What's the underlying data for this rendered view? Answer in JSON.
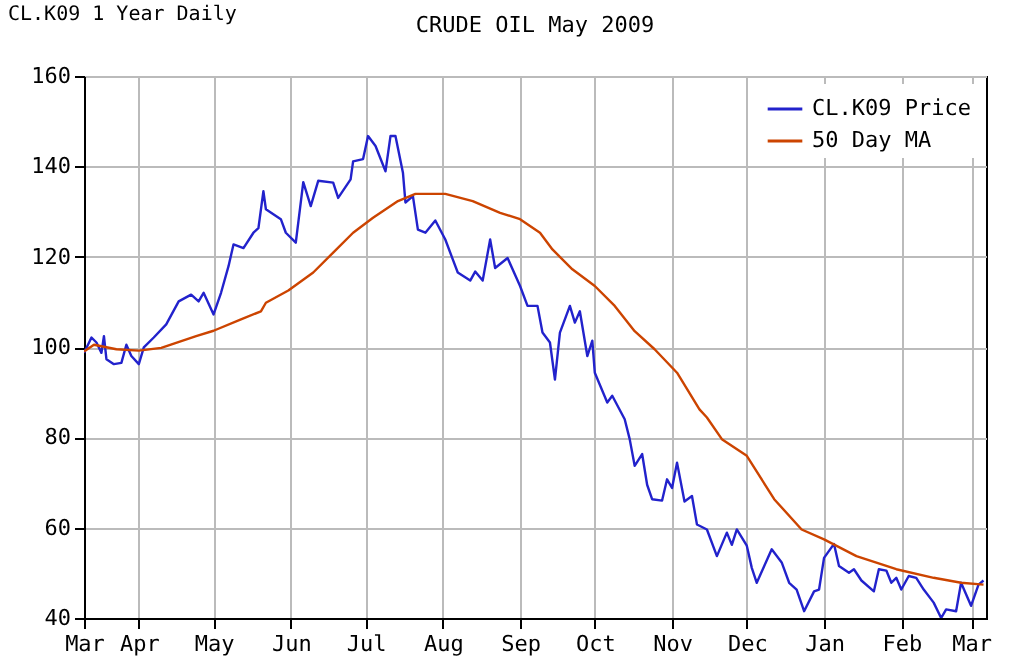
{
  "chart_data": {
    "type": "line",
    "title": "CRUDE OIL May 2009",
    "annotations": [
      "CL.K09 1 Year Daily"
    ],
    "xlim": [
      "2008-03-10",
      "2009-03-07"
    ],
    "xticks": [
      {
        "value": "2008-03-10",
        "label": "Mar"
      },
      {
        "value": "2008-04-01",
        "label": "Apr"
      },
      {
        "value": "2008-05-01",
        "label": "May"
      },
      {
        "value": "2008-06-01",
        "label": "Jun"
      },
      {
        "value": "2008-07-01",
        "label": "Jul"
      },
      {
        "value": "2008-08-01",
        "label": "Aug"
      },
      {
        "value": "2008-09-01",
        "label": "Sep"
      },
      {
        "value": "2008-10-01",
        "label": "Oct"
      },
      {
        "value": "2008-11-01",
        "label": "Nov"
      },
      {
        "value": "2008-12-01",
        "label": "Dec"
      },
      {
        "value": "2009-01-01",
        "label": "Jan"
      },
      {
        "value": "2009-02-01",
        "label": "Feb"
      },
      {
        "value": "2009-03-01",
        "label": "Mar"
      }
    ],
    "ylim": [
      40,
      160
    ],
    "yticks": [
      40,
      60,
      80,
      100,
      120,
      140,
      160
    ],
    "grid": true,
    "legend": "top right",
    "marker": "none",
    "line_style": "solid",
    "series": [
      {
        "name": "CL.K09 Price",
        "color": "#2222cc",
        "x": [
          "2008-03-10",
          "2008-03-13",
          "2008-03-15",
          "2008-03-17",
          "2008-03-18",
          "2008-03-19",
          "2008-03-22",
          "2008-03-25",
          "2008-03-27",
          "2008-03-29",
          "2008-04-01",
          "2008-04-03",
          "2008-04-07",
          "2008-04-12",
          "2008-04-17",
          "2008-04-22",
          "2008-04-25",
          "2008-04-27",
          "2008-05-01",
          "2008-05-04",
          "2008-05-07",
          "2008-05-09",
          "2008-05-13",
          "2008-05-17",
          "2008-05-19",
          "2008-05-21",
          "2008-05-22",
          "2008-05-28",
          "2008-05-30",
          "2008-06-03",
          "2008-06-06",
          "2008-06-09",
          "2008-06-12",
          "2008-06-18",
          "2008-06-20",
          "2008-06-25",
          "2008-06-26",
          "2008-06-30",
          "2008-07-02",
          "2008-07-05",
          "2008-07-09",
          "2008-07-11",
          "2008-07-13",
          "2008-07-16",
          "2008-07-17",
          "2008-07-20",
          "2008-07-22",
          "2008-07-25",
          "2008-07-29",
          "2008-08-02",
          "2008-08-05",
          "2008-08-07",
          "2008-08-12",
          "2008-08-14",
          "2008-08-17",
          "2008-08-20",
          "2008-08-22",
          "2008-08-27",
          "2008-09-01",
          "2008-09-04",
          "2008-09-08",
          "2008-09-10",
          "2008-09-13",
          "2008-09-15",
          "2008-09-17",
          "2008-09-21",
          "2008-09-23",
          "2008-09-25",
          "2008-09-28",
          "2008-09-30",
          "2008-10-01",
          "2008-10-06",
          "2008-10-08",
          "2008-10-13",
          "2008-10-15",
          "2008-10-17",
          "2008-10-20",
          "2008-10-22",
          "2008-10-24",
          "2008-10-28",
          "2008-10-30",
          "2008-11-01",
          "2008-11-03",
          "2008-11-06",
          "2008-11-09",
          "2008-11-11",
          "2008-11-15",
          "2008-11-19",
          "2008-11-23",
          "2008-11-25",
          "2008-11-27",
          "2008-12-01",
          "2008-12-03",
          "2008-12-05",
          "2008-12-08",
          "2008-12-11",
          "2008-12-15",
          "2008-12-18",
          "2008-12-21",
          "2008-12-24",
          "2008-12-28",
          "2008-12-30",
          "2009-01-01",
          "2009-01-05",
          "2009-01-07",
          "2009-01-11",
          "2009-01-13",
          "2009-01-16",
          "2009-01-21",
          "2009-01-23",
          "2009-01-26",
          "2009-01-28",
          "2009-01-30",
          "2009-02-01",
          "2009-02-04",
          "2009-02-07",
          "2009-02-10",
          "2009-02-14",
          "2009-02-17",
          "2009-02-19",
          "2009-02-23",
          "2009-02-25",
          "2009-03-01",
          "2009-03-04",
          "2009-03-06"
        ],
        "values": [
          98.7,
          102.1,
          101,
          98.7,
          102.4,
          97.3,
          96.2,
          96.5,
          100.5,
          98,
          96.2,
          99.9,
          102.1,
          105,
          110.1,
          111.6,
          110.1,
          112,
          107.2,
          112,
          117.9,
          122.7,
          121.9,
          125.3,
          126.3,
          134.5,
          130.5,
          128.3,
          125.3,
          123.1,
          136.5,
          131.2,
          136.8,
          136.4,
          133,
          137.1,
          141.1,
          141.6,
          146.7,
          144.5,
          138.9,
          146.7,
          146.7,
          138.6,
          132,
          133.4,
          126,
          125.3,
          128,
          123.8,
          119.4,
          116.5,
          114.7,
          116.7,
          114.7,
          123.8,
          117.5,
          119.7,
          113.5,
          109.1,
          109.1,
          103.2,
          101,
          92.8,
          103.2,
          109.1,
          105.4,
          107.9,
          98,
          101.4,
          94.3,
          87.7,
          89.2,
          84,
          79.6,
          73.7,
          76.3,
          69.5,
          66.3,
          66,
          70.7,
          68.8,
          74.4,
          65.8,
          67,
          60.7,
          59.6,
          53.7,
          58.9,
          56.2,
          59.6,
          56,
          51.1,
          47.8,
          51.5,
          55.2,
          52.3,
          47.8,
          46.3,
          41.5,
          45.9,
          46.3,
          53.3,
          56.4,
          51.5,
          50,
          50.8,
          48.3,
          45.9,
          50.8,
          50.5,
          47.8,
          48.9,
          46.3,
          49.3,
          48.9,
          46.3,
          43.4,
          40,
          41.9,
          41.5,
          47.8,
          42.7,
          47.4,
          48.3
        ]
      },
      {
        "name": "50 Day MA",
        "color": "#cc4400",
        "x": [
          "2008-03-10",
          "2008-03-14",
          "2008-03-23",
          "2008-04-01",
          "2008-04-10",
          "2008-04-24",
          "2008-05-01",
          "2008-05-12",
          "2008-05-20",
          "2008-05-22",
          "2008-05-31",
          "2008-06-10",
          "2008-06-18",
          "2008-06-26",
          "2008-07-04",
          "2008-07-14",
          "2008-07-21",
          "2008-08-02",
          "2008-08-13",
          "2008-08-24",
          "2008-09-01",
          "2008-09-09",
          "2008-09-14",
          "2008-09-22",
          "2008-10-01",
          "2008-10-09",
          "2008-10-17",
          "2008-10-25",
          "2008-11-03",
          "2008-11-12",
          "2008-11-15",
          "2008-11-21",
          "2008-12-01",
          "2008-12-12",
          "2008-12-23",
          "2009-01-01",
          "2009-01-14",
          "2009-01-30",
          "2009-02-14",
          "2009-02-25",
          "2009-03-06"
        ],
        "values": [
          99,
          100.5,
          99.5,
          99.2,
          99.8,
          102.4,
          103.6,
          106.1,
          107.9,
          109.8,
          112.5,
          116.5,
          120.9,
          125.3,
          128.6,
          132.3,
          133.9,
          133.9,
          132.3,
          129.7,
          128.3,
          125.3,
          121.6,
          117.2,
          113.5,
          109.1,
          103.5,
          99.5,
          94.3,
          86.2,
          84.4,
          79.6,
          75.9,
          66.3,
          59.6,
          57.4,
          53.7,
          50.8,
          48.9,
          47.8,
          47.4
        ]
      }
    ]
  }
}
